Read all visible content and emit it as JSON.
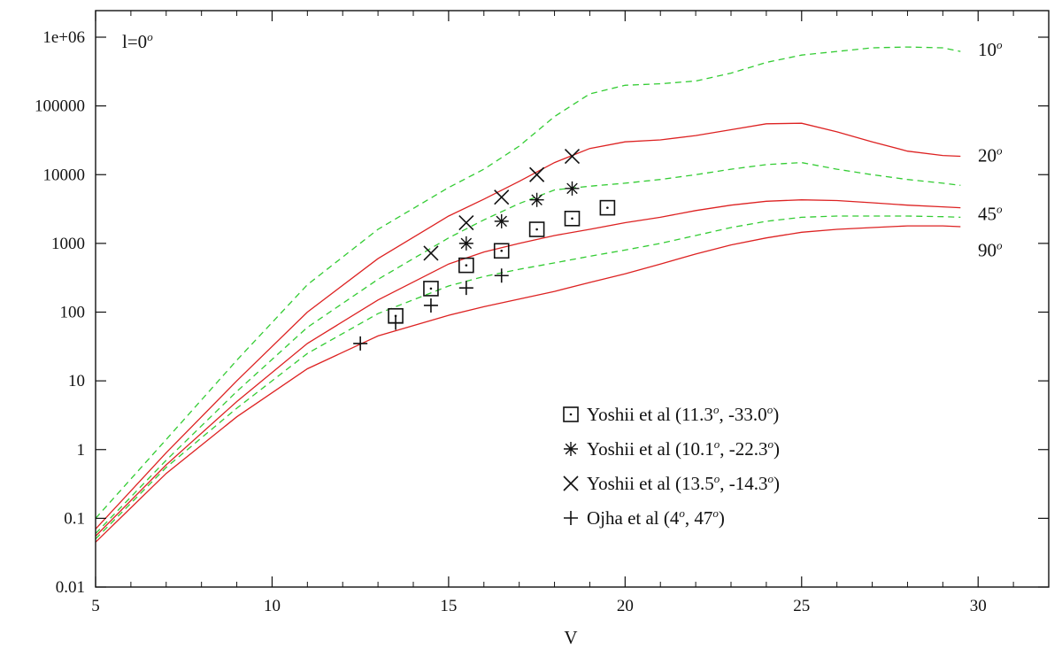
{
  "chart_data": {
    "type": "line",
    "title": "",
    "panel_label": "l=0",
    "panel_label_sup": "o",
    "xlabel": "V",
    "ylabel": "",
    "xlim": [
      5,
      32
    ],
    "ylim": [
      0.01,
      1000000
    ],
    "yscale": "log",
    "grid": false,
    "x_ticks": [
      5,
      10,
      15,
      20,
      25,
      30
    ],
    "y_ticks": [
      {
        "value": 0.01,
        "label": "0.01"
      },
      {
        "value": 0.1,
        "label": "0.1"
      },
      {
        "value": 1,
        "label": "1"
      },
      {
        "value": 10,
        "label": "10"
      },
      {
        "value": 100,
        "label": "100"
      },
      {
        "value": 1000,
        "label": "1000"
      },
      {
        "value": 10000,
        "label": "10000"
      },
      {
        "value": 100000,
        "label": "100000"
      },
      {
        "value": 1000000,
        "label": "1e+06"
      }
    ],
    "curves": [
      {
        "style": "dashed",
        "color": "#33cc33",
        "x": [
          5,
          7,
          9,
          11,
          13,
          15,
          16,
          17,
          18,
          19,
          20,
          21,
          22,
          23,
          24,
          25,
          26,
          27,
          28,
          29,
          29.5
        ],
        "y": [
          0.1,
          1.4,
          20,
          250,
          1600,
          6500,
          12000,
          26000,
          70000,
          150000,
          200000,
          210000,
          230000,
          300000,
          430000,
          550000,
          620000,
          700000,
          720000,
          700000,
          620000
        ]
      },
      {
        "style": "solid",
        "color": "#dd2222",
        "x": [
          5,
          7,
          9,
          11,
          13,
          15,
          16,
          17,
          18,
          19,
          20,
          21,
          22,
          23,
          24,
          25,
          26,
          27,
          28,
          29,
          29.5
        ],
        "y": [
          0.07,
          0.9,
          10,
          100,
          600,
          2500,
          4400,
          8000,
          15000,
          24000,
          30000,
          32000,
          37000,
          45000,
          55000,
          56000,
          42000,
          30000,
          22000,
          19000,
          18500
        ]
      },
      {
        "style": "dashed",
        "color": "#33cc33",
        "x": [
          5,
          7,
          9,
          11,
          13,
          15,
          16,
          17,
          18,
          19,
          20,
          21,
          22,
          23,
          24,
          25,
          26,
          27,
          28,
          29,
          29.5
        ],
        "y": [
          0.06,
          0.7,
          7,
          60,
          300,
          1200,
          2200,
          3800,
          6000,
          6800,
          7500,
          8500,
          10000,
          12000,
          14000,
          15000,
          12000,
          10000,
          8500,
          7500,
          7000
        ]
      },
      {
        "style": "solid",
        "color": "#dd2222",
        "x": [
          5,
          7,
          9,
          11,
          13,
          15,
          16,
          17,
          18,
          19,
          20,
          21,
          22,
          23,
          24,
          25,
          26,
          27,
          28,
          29,
          29.5
        ],
        "y": [
          0.055,
          0.6,
          5,
          35,
          150,
          500,
          750,
          1000,
          1300,
          1600,
          2000,
          2400,
          3000,
          3600,
          4100,
          4300,
          4200,
          3900,
          3600,
          3400,
          3300
        ]
      },
      {
        "style": "dashed",
        "color": "#33cc33",
        "x": [
          5,
          7,
          9,
          11,
          13,
          15,
          16,
          17,
          18,
          19,
          20,
          21,
          22,
          23,
          24,
          25,
          26,
          27,
          28,
          29,
          29.5
        ],
        "y": [
          0.05,
          0.55,
          4,
          25,
          95,
          240,
          330,
          420,
          520,
          650,
          800,
          1000,
          1300,
          1700,
          2100,
          2400,
          2500,
          2500,
          2500,
          2450,
          2400
        ]
      },
      {
        "style": "solid",
        "color": "#dd2222",
        "x": [
          5,
          7,
          9,
          11,
          13,
          15,
          16,
          17,
          18,
          19,
          20,
          21,
          22,
          23,
          24,
          25,
          26,
          27,
          28,
          29,
          29.5
        ],
        "y": [
          0.045,
          0.45,
          3,
          15,
          45,
          90,
          120,
          155,
          200,
          270,
          360,
          500,
          700,
          950,
          1200,
          1450,
          1600,
          1700,
          1800,
          1800,
          1750
        ]
      }
    ],
    "curve_labels": [
      {
        "text": "10",
        "sup": "o",
        "y": 660000
      },
      {
        "text": "20",
        "sup": "o",
        "y": 19000
      },
      {
        "text": "45",
        "sup": "o",
        "y": 2700
      },
      {
        "text": "90",
        "sup": "o",
        "y": 800
      }
    ],
    "series": [
      {
        "name": "Yoshii et al (11.3",
        "name_sup1": "o",
        "name_mid": ", -33.0",
        "name_sup2": "o",
        "name_end": ")",
        "marker": "square-dot",
        "x": [
          13.5,
          14.5,
          15.5,
          16.5,
          17.5,
          18.5,
          19.5
        ],
        "y": [
          88,
          220,
          480,
          780,
          1600,
          2300,
          3300
        ]
      },
      {
        "name": "Yoshii et al (10.1",
        "name_sup1": "o",
        "name_mid": ", -22.3",
        "name_sup2": "o",
        "name_end": ")",
        "marker": "asterisk",
        "x": [
          15.5,
          16.5,
          17.5,
          18.5
        ],
        "y": [
          1000,
          2100,
          4300,
          6300
        ]
      },
      {
        "name": "Yoshii et al (13.5",
        "name_sup1": "o",
        "name_mid": ", -14.3",
        "name_sup2": "o",
        "name_end": ")",
        "marker": "cross",
        "x": [
          14.5,
          15.5,
          16.5,
          17.5,
          18.5
        ],
        "y": [
          720,
          2000,
          4700,
          10000,
          18500
        ]
      },
      {
        "name": "Ojha et al (4",
        "name_sup1": "o",
        "name_mid": ", 47",
        "name_sup2": "o",
        "name_end": ")",
        "marker": "plus",
        "x": [
          12.5,
          13.5,
          14.5,
          15.5,
          16.5
        ],
        "y": [
          35,
          70,
          125,
          225,
          340
        ]
      }
    ],
    "legend_position": "lower-right (inside plot)"
  }
}
